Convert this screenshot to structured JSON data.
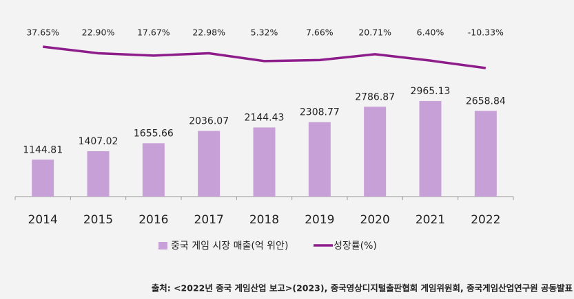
{
  "chart_data": {
    "type": "bar",
    "categories": [
      "2014",
      "2015",
      "2016",
      "2017",
      "2018",
      "2019",
      "2020",
      "2021",
      "2022"
    ],
    "series": [
      {
        "name": "중국 게임 시장 매출(억 위안)",
        "type": "bar",
        "color": "#c8a0d8",
        "values": [
          1144.81,
          1407.02,
          1655.66,
          2036.07,
          2144.43,
          2308.77,
          2786.87,
          2965.13,
          2658.84
        ]
      },
      {
        "name": "성장률(%)",
        "type": "line",
        "axis": "y2",
        "color": "#8e1d8c",
        "values": [
          37.65,
          22.9,
          17.67,
          22.98,
          5.32,
          7.66,
          20.71,
          6.4,
          -10.33
        ],
        "value_labels": [
          "37.65%",
          "22.90%",
          "17.67%",
          "22.98%",
          "5.32%",
          "7.66%",
          "20.71%",
          "6.40%",
          "-10.33%"
        ]
      }
    ],
    "legend": "bottom",
    "source": "출처: <2022년 중국 게임산업 보고>(2023), 중국영상디지털출판협회 게임위원회, 중국게임산업연구원 공동발표"
  }
}
